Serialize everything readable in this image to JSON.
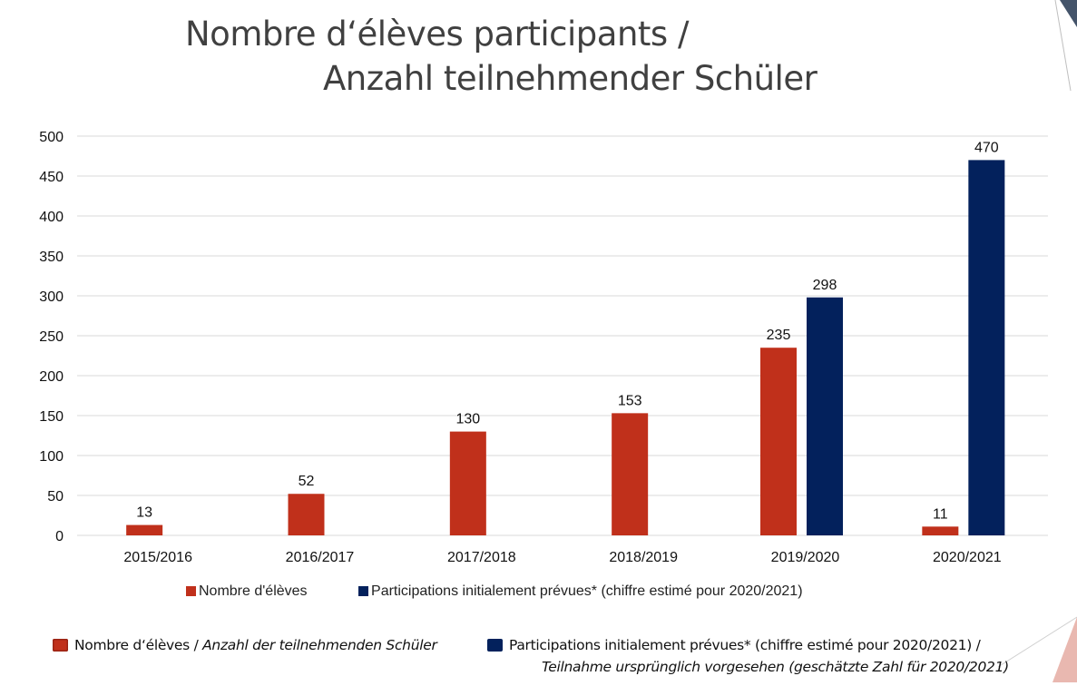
{
  "title": {
    "line1": "Nombre d‘élèves participants /",
    "line2": "Anzahl teilnehmender Schüler"
  },
  "colors": {
    "series1": "#c0301b",
    "series2": "#03215c",
    "grid": "#d9d9d9",
    "axis_text": "#111111",
    "title_text": "#404040"
  },
  "chart_data": {
    "type": "bar",
    "title": "Nombre d‘élèves participants / Anzahl teilnehmender Schüler",
    "xlabel": "",
    "ylabel": "",
    "ylim": [
      0,
      500
    ],
    "yticks": [
      0,
      50,
      100,
      150,
      200,
      250,
      300,
      350,
      400,
      450,
      500
    ],
    "grid": true,
    "legend_position": "bottom",
    "categories": [
      "2015/2016",
      "2016/2017",
      "2017/2018",
      "2018/2019",
      "2019/2020",
      "2020/2021"
    ],
    "series": [
      {
        "name": "Nombre d'élèves",
        "color": "#c0301b",
        "values": [
          13,
          52,
          130,
          153,
          235,
          11
        ]
      },
      {
        "name": "Participations initialement prévues* (chiffre estimé pour 2020/2021)",
        "color": "#03215c",
        "values": [
          null,
          null,
          null,
          null,
          298,
          470
        ]
      }
    ]
  },
  "chart_legend": {
    "item1": "Nombre d'élèves",
    "item2": "Participations initialement prévues* (chiffre estimé pour 2020/2021)"
  },
  "bilingual_legend": {
    "item1_fr": "Nombre d‘élèves / ",
    "item1_de": "Anzahl der teilnehmenden Schüler",
    "item2_fr": "Participations initialement prévues* (chiffre estimé pour 2020/2021) /",
    "item2_de": "Teilnahme ursprünglich vorgesehen (geschätzte Zahl für 2020/2021)"
  }
}
